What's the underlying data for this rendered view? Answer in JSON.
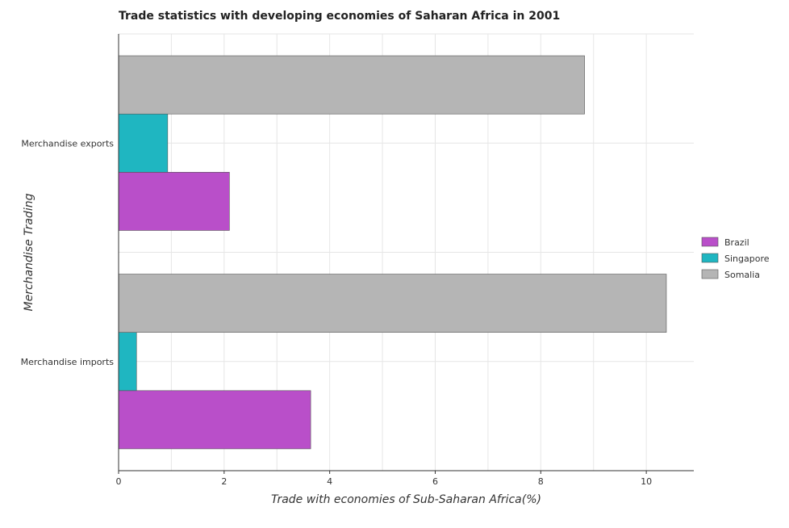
{
  "chart_data": {
    "type": "bar",
    "orientation": "horizontal",
    "title": "Trade statistics with developing economies of Saharan Africa in 2001",
    "xlabel": "Trade with economies of Sub-Saharan Africa(%)",
    "ylabel": "Merchandise Trading",
    "categories": [
      "Merchandise exports",
      "Merchandise imports"
    ],
    "series": [
      {
        "name": "Brazil",
        "color": "#b94fc9",
        "values": [
          2.1,
          3.64
        ]
      },
      {
        "name": "Singapore",
        "color": "#1fb6c1",
        "values": [
          0.93,
          0.34
        ]
      },
      {
        "name": "Somalia",
        "color": "#b5b5b5",
        "values": [
          8.83,
          10.38
        ]
      }
    ],
    "xlim": [
      0,
      10.9
    ],
    "xticks": [
      0,
      2,
      4,
      6,
      8,
      10
    ],
    "xtick_labels": [
      "0",
      "2",
      "4",
      "6",
      "8",
      "10"
    ],
    "grid": true,
    "legend_position": "right"
  }
}
